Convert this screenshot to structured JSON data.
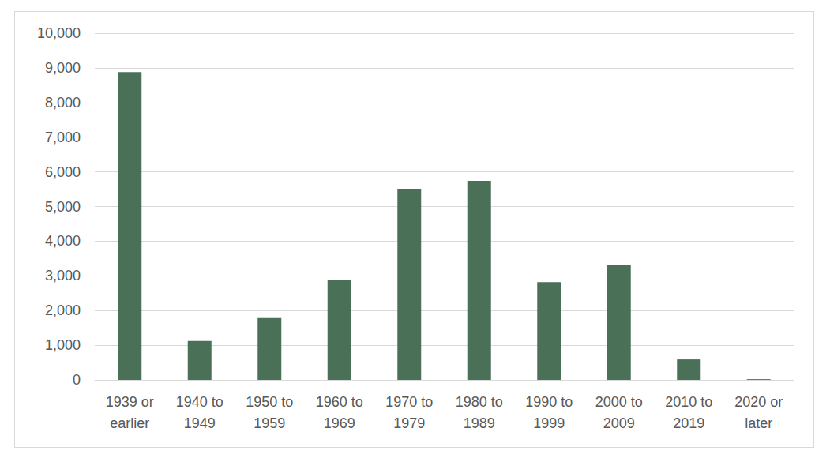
{
  "chart_data": {
    "type": "bar",
    "categories": [
      "1939 or earlier",
      "1940 to 1949",
      "1950 to 1959",
      "1960 to 1969",
      "1970 to 1979",
      "1980 to 1989",
      "1990 to 1999",
      "2000 to 2009",
      "2010 to 2019",
      "2020 or later"
    ],
    "values": [
      8880,
      1120,
      1780,
      2880,
      5510,
      5740,
      2820,
      3320,
      590,
      20
    ],
    "color": "#4a7058",
    "ylim": [
      0,
      10000
    ],
    "yticks": [
      0,
      {
        "value": 1000,
        "label": "1,000"
      },
      {
        "value": 2000,
        "label": "2,000"
      },
      {
        "value": 3000,
        "label": "3,000"
      },
      {
        "value": 4000,
        "label": "4,000"
      },
      {
        "value": 5000,
        "label": "5,000"
      },
      {
        "value": 6000,
        "label": "6,000"
      },
      {
        "value": 7000,
        "label": "7,000"
      },
      {
        "value": 8000,
        "label": "8,000"
      },
      {
        "value": 9000,
        "label": "9,000"
      },
      {
        "value": 10000,
        "label": "10,000"
      }
    ],
    "grid": true
  }
}
